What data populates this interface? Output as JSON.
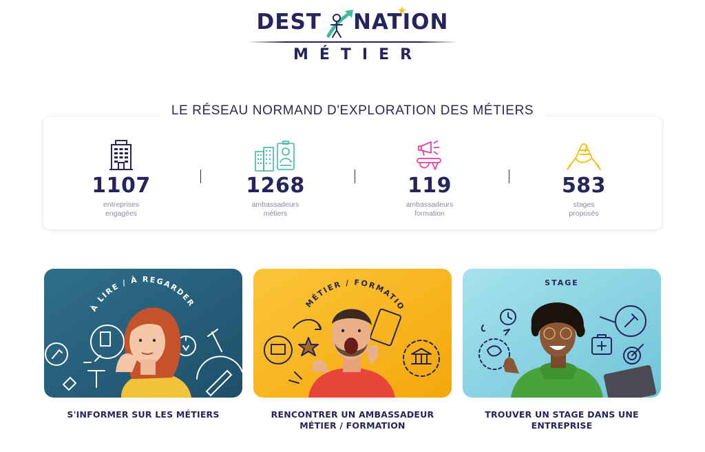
{
  "brand": {
    "line1_left": "DEST",
    "line1_right": "NATION",
    "line2": "MÉTIER",
    "colors": {
      "navy": "#26245a",
      "star": "#f2c318"
    }
  },
  "network": {
    "heading": "LE RÉSEAU NORMAND D'EXPLORATION DES MÉTIERS",
    "stats": [
      {
        "icon": "building-icon",
        "value": "1107",
        "label_line1": "entreprises",
        "label_line2": "engagées",
        "color": "#26245a"
      },
      {
        "icon": "ambassador-badge-icon",
        "value": "1268",
        "label_line1": "ambassadeurs",
        "label_line2": "métiers",
        "color": "#3fb9a2"
      },
      {
        "icon": "megaphone-icon",
        "value": "119",
        "label_line1": "ambassadeurs",
        "label_line2": "formation",
        "color": "#e63fa5"
      },
      {
        "icon": "handshake-icon",
        "value": "583",
        "label_line1": "stages",
        "label_line2": "proposés",
        "color": "#f2c318"
      }
    ]
  },
  "cards": [
    {
      "image_caption": "À LIRE / À REGARDER",
      "title_line1": "S'INFORMER SUR LES MÉTIERS",
      "title_line2": "",
      "bg_color": "#27607a"
    },
    {
      "image_caption": "MÉTIER / FORMATION",
      "title_line1": "RENCONTRER UN AMBASSADEUR",
      "title_line2": "MÉTIER / FORMATION",
      "bg_color": "#f7b718"
    },
    {
      "image_caption": "STAGE",
      "title_line1": "TROUVER UN STAGE DANS UNE",
      "title_line2": "ENTREPRISE",
      "bg_color": "#8fd6e6"
    }
  ]
}
